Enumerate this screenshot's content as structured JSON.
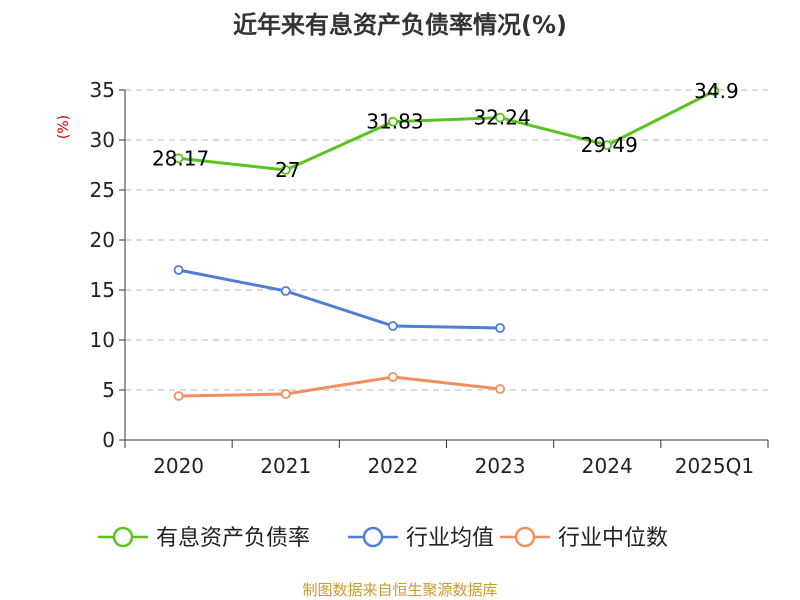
{
  "chart_data": {
    "type": "line",
    "title": "近年来有息资产负债率情况(%)",
    "ylabel": "(%)",
    "xlabel": "",
    "categories": [
      "2020",
      "2021",
      "2022",
      "2023",
      "2024",
      "2025Q1"
    ],
    "y_ticks": [
      "0",
      "5",
      "10",
      "15",
      "20",
      "25",
      "30",
      "35"
    ],
    "ylim": [
      0,
      35
    ],
    "grid": true,
    "legend_position": "bottom",
    "series": [
      {
        "name": "有息资产负债率",
        "color": "#5ac31f",
        "values": [
          28.17,
          27,
          31.83,
          32.24,
          29.49,
          34.9
        ],
        "labels": [
          "28.17",
          "27",
          "31.83",
          "32.24",
          "29.49",
          "34.9"
        ]
      },
      {
        "name": "行业均值",
        "color": "#4f7ed6",
        "values": [
          17.0,
          14.9,
          11.4,
          11.2,
          null,
          null
        ]
      },
      {
        "name": "行业中位数",
        "color": "#f28f5e",
        "values": [
          4.4,
          4.6,
          6.3,
          5.1,
          null,
          null
        ]
      }
    ],
    "source": "制图数据来自恒生聚源数据库",
    "colors": {
      "unit": "#d40000",
      "source": "#c99a2e",
      "grid": "#c8c8c8",
      "axis": "#333333"
    }
  }
}
